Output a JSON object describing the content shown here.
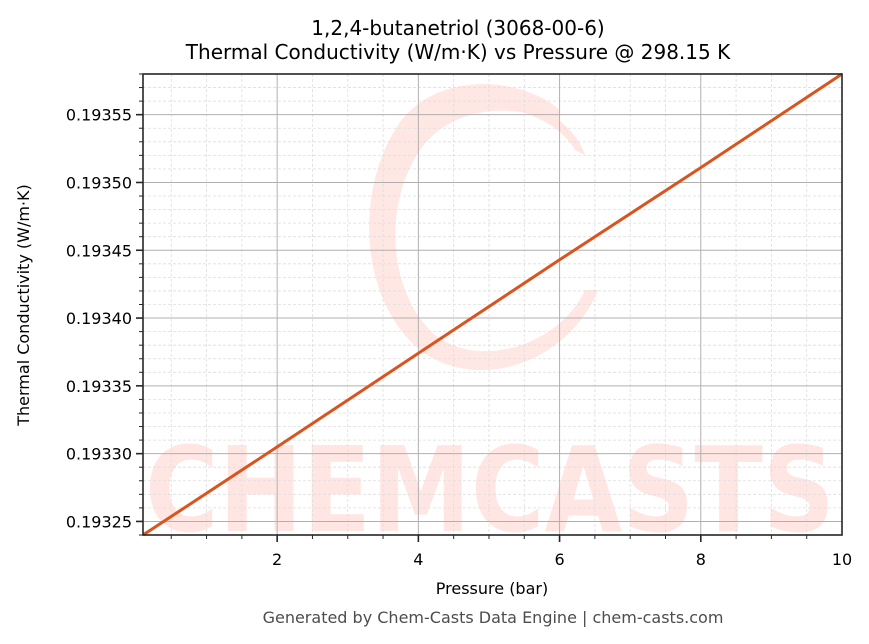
{
  "header": {
    "title_line1": "1,2,4-butanetriol (3068-00-6)",
    "title_line2": "Thermal Conductivity (W/m·K) vs Pressure @ 298.15 K"
  },
  "footer": {
    "text": "Generated by Chem-Casts Data Engine | chem-casts.com"
  },
  "watermark": {
    "text": "CHEMCASTS",
    "color": "#ffe6e3"
  },
  "colors": {
    "line": "#d9541e",
    "major_grid": "#b0b0b0",
    "minor_grid": "#dedede",
    "axes": "#262626"
  },
  "chart_data": {
    "type": "line",
    "title": "1,2,4-butanetriol (3068-00-6)\nThermal Conductivity (W/m·K) vs Pressure @ 298.15 K",
    "xlabel": "Pressure (bar)",
    "ylabel": "Thermal Conductivity (W/m·K)",
    "xlim": [
      0.1,
      10
    ],
    "ylim": [
      0.19324,
      0.19358
    ],
    "x_ticks": [
      2,
      4,
      6,
      8,
      10
    ],
    "x_tick_labels": [
      "2",
      "4",
      "6",
      "8",
      "10"
    ],
    "y_ticks": [
      0.19325,
      0.1933,
      0.19335,
      0.1934,
      0.19345,
      0.1935,
      0.19355
    ],
    "y_tick_labels": [
      "0.19325",
      "0.19330",
      "0.19335",
      "0.19340",
      "0.19345",
      "0.19350",
      "0.19355"
    ],
    "grid": true,
    "minor_grid": true,
    "legend": null,
    "series": [
      {
        "name": "Thermal Conductivity",
        "color": "#d9541e",
        "x": [
          0.1,
          2,
          4,
          6,
          8,
          10
        ],
        "y": [
          0.19324,
          0.193305,
          0.193374,
          0.193443,
          0.193511,
          0.19358
        ]
      }
    ]
  }
}
